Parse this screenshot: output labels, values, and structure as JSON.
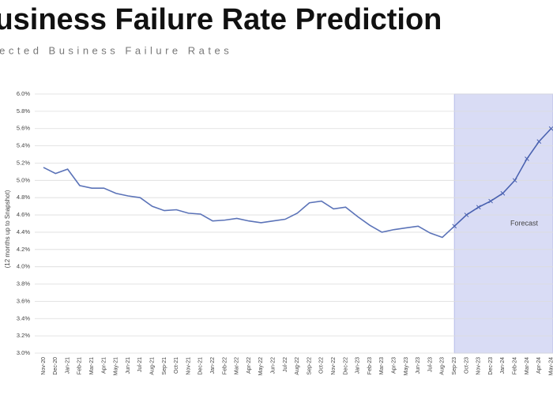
{
  "chart_data": {
    "type": "line",
    "title": "Business Failure Rate Prediction",
    "subtitle": "Projected Business Failure Rates",
    "y_label": "(12 months up to Snapshot)",
    "annotation": "Forecast",
    "categories": [
      "Nov-20",
      "Dec-20",
      "Jan-21",
      "Feb-21",
      "Mar-21",
      "Apr-21",
      "May-21",
      "Jun-21",
      "Jul-21",
      "Aug-21",
      "Sep-21",
      "Oct-21",
      "Nov-21",
      "Dec-21",
      "Jan-22",
      "Feb-22",
      "Mar-22",
      "Apr-22",
      "May-22",
      "Jun-22",
      "Jul-22",
      "Aug-22",
      "Sep-22",
      "Oct-22",
      "Nov-22",
      "Dec-22",
      "Jan-23",
      "Feb-23",
      "Mar-23",
      "Apr-23",
      "May-23",
      "Jun-23",
      "Jul-23",
      "Aug-23",
      "Sep-23",
      "Oct-23",
      "Nov-23",
      "Dec-23",
      "Jan-24",
      "Feb-24",
      "Mar-24",
      "Apr-24",
      "May-24"
    ],
    "series": [
      {
        "color": "#5b73b8",
        "values": [
          5.15,
          5.08,
          5.13,
          4.94,
          4.91,
          4.91,
          4.85,
          4.82,
          4.8,
          4.7,
          4.65,
          4.66,
          4.62,
          4.61,
          4.53,
          4.54,
          4.56,
          4.53,
          4.51,
          4.53,
          4.55,
          4.62,
          4.74,
          4.76,
          4.67,
          4.69,
          4.58,
          4.48,
          4.4,
          4.43,
          4.45,
          4.47,
          4.39,
          4.34,
          4.47,
          null,
          null,
          null,
          null,
          null,
          null,
          null,
          null
        ]
      },
      {
        "color": "#4a62b0",
        "values": [
          null,
          null,
          null,
          null,
          null,
          null,
          null,
          null,
          null,
          null,
          null,
          null,
          null,
          null,
          null,
          null,
          null,
          null,
          null,
          null,
          null,
          null,
          null,
          null,
          null,
          null,
          null,
          null,
          null,
          null,
          null,
          null,
          null,
          null,
          4.47,
          4.6,
          4.69,
          4.76,
          4.85,
          5.0,
          5.25,
          5.45,
          5.6
        ]
      }
    ],
    "ylim": [
      3.0,
      6.0
    ],
    "yticks": [
      {
        "value": 3.0,
        "label": "3.0%"
      },
      {
        "value": 3.2,
        "label": "3.2%"
      },
      {
        "value": 3.4,
        "label": "3.4%"
      },
      {
        "value": 3.6,
        "label": "3.6%"
      },
      {
        "value": 3.8,
        "label": "3.8%"
      },
      {
        "value": 4.0,
        "label": "4.0%"
      },
      {
        "value": 4.2,
        "label": "4.2%"
      },
      {
        "value": 4.4,
        "label": "4.4%"
      },
      {
        "value": 4.6,
        "label": "4.6%"
      },
      {
        "value": 4.8,
        "label": "4.8%"
      },
      {
        "value": 5.0,
        "label": "5.0%"
      },
      {
        "value": 5.2,
        "label": "5.2%"
      },
      {
        "value": 5.4,
        "label": "5.4%"
      },
      {
        "value": 5.6,
        "label": "5.6%"
      },
      {
        "value": 5.8,
        "label": "5.8%"
      },
      {
        "value": 6.0,
        "label": "6.0%"
      }
    ],
    "grid": true
  }
}
